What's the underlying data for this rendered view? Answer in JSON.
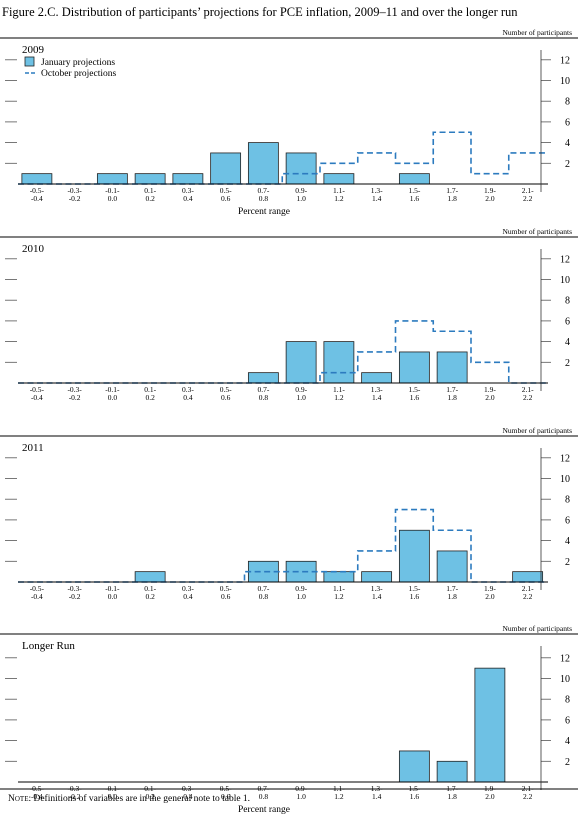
{
  "figure": {
    "title": "Figure 2.C. Distribution of participants’ projections for PCE inflation, 2009–11 and over the longer run",
    "note_label": "Note:",
    "note_text": " Definitions of variables are in the general note to table 1."
  },
  "chart_data": [
    {
      "type": "bar",
      "title": "2009",
      "ylabel": "Number of participants",
      "xlabel": "Percent range",
      "ylim": [
        0,
        13
      ],
      "yticks": [
        2,
        4,
        6,
        8,
        10,
        12
      ],
      "categories": [
        [
          "-0.5-",
          "-0.4"
        ],
        [
          "-0.3-",
          "-0.2"
        ],
        [
          "-0.1-",
          "0.0"
        ],
        [
          "0.1-",
          "0.2"
        ],
        [
          "0.3-",
          "0.4"
        ],
        [
          "0.5-",
          "0.6"
        ],
        [
          "0.7-",
          "0.8"
        ],
        [
          "0.9-",
          "1.0"
        ],
        [
          "1.1-",
          "1.2"
        ],
        [
          "1.3-",
          "1.4"
        ],
        [
          "1.5-",
          "1.6"
        ],
        [
          "1.7-",
          "1.8"
        ],
        [
          "1.9-",
          "2.0"
        ],
        [
          "2.1-",
          "2.2"
        ]
      ],
      "legend": {
        "placement": "top-left"
      },
      "series": [
        {
          "name": "January projections",
          "style": "bar",
          "color": "#6ec1e4",
          "values": [
            1,
            0,
            1,
            1,
            1,
            3,
            4,
            3,
            1,
            0,
            1,
            0,
            0,
            0
          ]
        },
        {
          "name": "October projections",
          "style": "dashed-step",
          "color": "#2c7bbf",
          "values": [
            0,
            0,
            0,
            0,
            0,
            0,
            0,
            1,
            2,
            3,
            2,
            5,
            1,
            3
          ]
        }
      ]
    },
    {
      "type": "bar",
      "title": "2010",
      "ylabel": "Number of participants",
      "xlabel": "",
      "ylim": [
        0,
        13
      ],
      "yticks": [
        2,
        4,
        6,
        8,
        10,
        12
      ],
      "categories": [
        [
          "-0.5-",
          "-0.4"
        ],
        [
          "-0.3-",
          "-0.2"
        ],
        [
          "-0.1-",
          "0.0"
        ],
        [
          "0.1-",
          "0.2"
        ],
        [
          "0.3-",
          "0.4"
        ],
        [
          "0.5-",
          "0.6"
        ],
        [
          "0.7-",
          "0.8"
        ],
        [
          "0.9-",
          "1.0"
        ],
        [
          "1.1-",
          "1.2"
        ],
        [
          "1.3-",
          "1.4"
        ],
        [
          "1.5-",
          "1.6"
        ],
        [
          "1.7-",
          "1.8"
        ],
        [
          "1.9-",
          "2.0"
        ],
        [
          "2.1-",
          "2.2"
        ]
      ],
      "series": [
        {
          "style": "bar",
          "color": "#6ec1e4",
          "values": [
            0,
            0,
            0,
            0,
            0,
            0,
            1,
            4,
            4,
            1,
            3,
            3,
            0,
            0
          ]
        },
        {
          "style": "dashed-step",
          "color": "#2c7bbf",
          "values": [
            0,
            0,
            0,
            0,
            0,
            0,
            0,
            0,
            1,
            3,
            6,
            5,
            2,
            0
          ]
        }
      ]
    },
    {
      "type": "bar",
      "title": "2011",
      "ylabel": "Number of participants",
      "xlabel": "",
      "ylim": [
        0,
        13
      ],
      "yticks": [
        2,
        4,
        6,
        8,
        10,
        12
      ],
      "categories": [
        [
          "-0.5-",
          "-0.4"
        ],
        [
          "-0.3-",
          "-0.2"
        ],
        [
          "-0.1-",
          "0.0"
        ],
        [
          "0.1-",
          "0.2"
        ],
        [
          "0.3-",
          "0.4"
        ],
        [
          "0.5-",
          "0.6"
        ],
        [
          "0.7-",
          "0.8"
        ],
        [
          "0.9-",
          "1.0"
        ],
        [
          "1.1-",
          "1.2"
        ],
        [
          "1.3-",
          "1.4"
        ],
        [
          "1.5-",
          "1.6"
        ],
        [
          "1.7-",
          "1.8"
        ],
        [
          "1.9-",
          "2.0"
        ],
        [
          "2.1-",
          "2.2"
        ]
      ],
      "series": [
        {
          "style": "bar",
          "color": "#6ec1e4",
          "values": [
            0,
            0,
            0,
            1,
            0,
            0,
            2,
            2,
            1,
            1,
            5,
            3,
            0,
            1
          ]
        },
        {
          "style": "dashed-step",
          "color": "#2c7bbf",
          "values": [
            0,
            0,
            0,
            0,
            0,
            0,
            1,
            1,
            1,
            3,
            7,
            5,
            0,
            0
          ]
        }
      ]
    },
    {
      "type": "bar",
      "title": "Longer Run",
      "ylabel": "Number of participants",
      "xlabel": "Percent range",
      "ylim": [
        0,
        13
      ],
      "yticks": [
        2,
        4,
        6,
        8,
        10,
        12
      ],
      "categories": [
        [
          "-0.5-",
          "-0.4"
        ],
        [
          "-0.3-",
          "-0.2"
        ],
        [
          "-0.1-",
          "0.0"
        ],
        [
          "0.1-",
          "0.2"
        ],
        [
          "0.3-",
          "0.4"
        ],
        [
          "0.5-",
          "0.6"
        ],
        [
          "0.7-",
          "0.8"
        ],
        [
          "0.9-",
          "1.0"
        ],
        [
          "1.1-",
          "1.2"
        ],
        [
          "1.3-",
          "1.4"
        ],
        [
          "1.5-",
          "1.6"
        ],
        [
          "1.7-",
          "1.8"
        ],
        [
          "1.9-",
          "2.0"
        ],
        [
          "2.1-",
          "2.2"
        ]
      ],
      "series": [
        {
          "style": "bar",
          "color": "#6ec1e4",
          "values": [
            0,
            0,
            0,
            0,
            0,
            0,
            0,
            0,
            0,
            0,
            3,
            2,
            11,
            0
          ]
        }
      ]
    }
  ]
}
